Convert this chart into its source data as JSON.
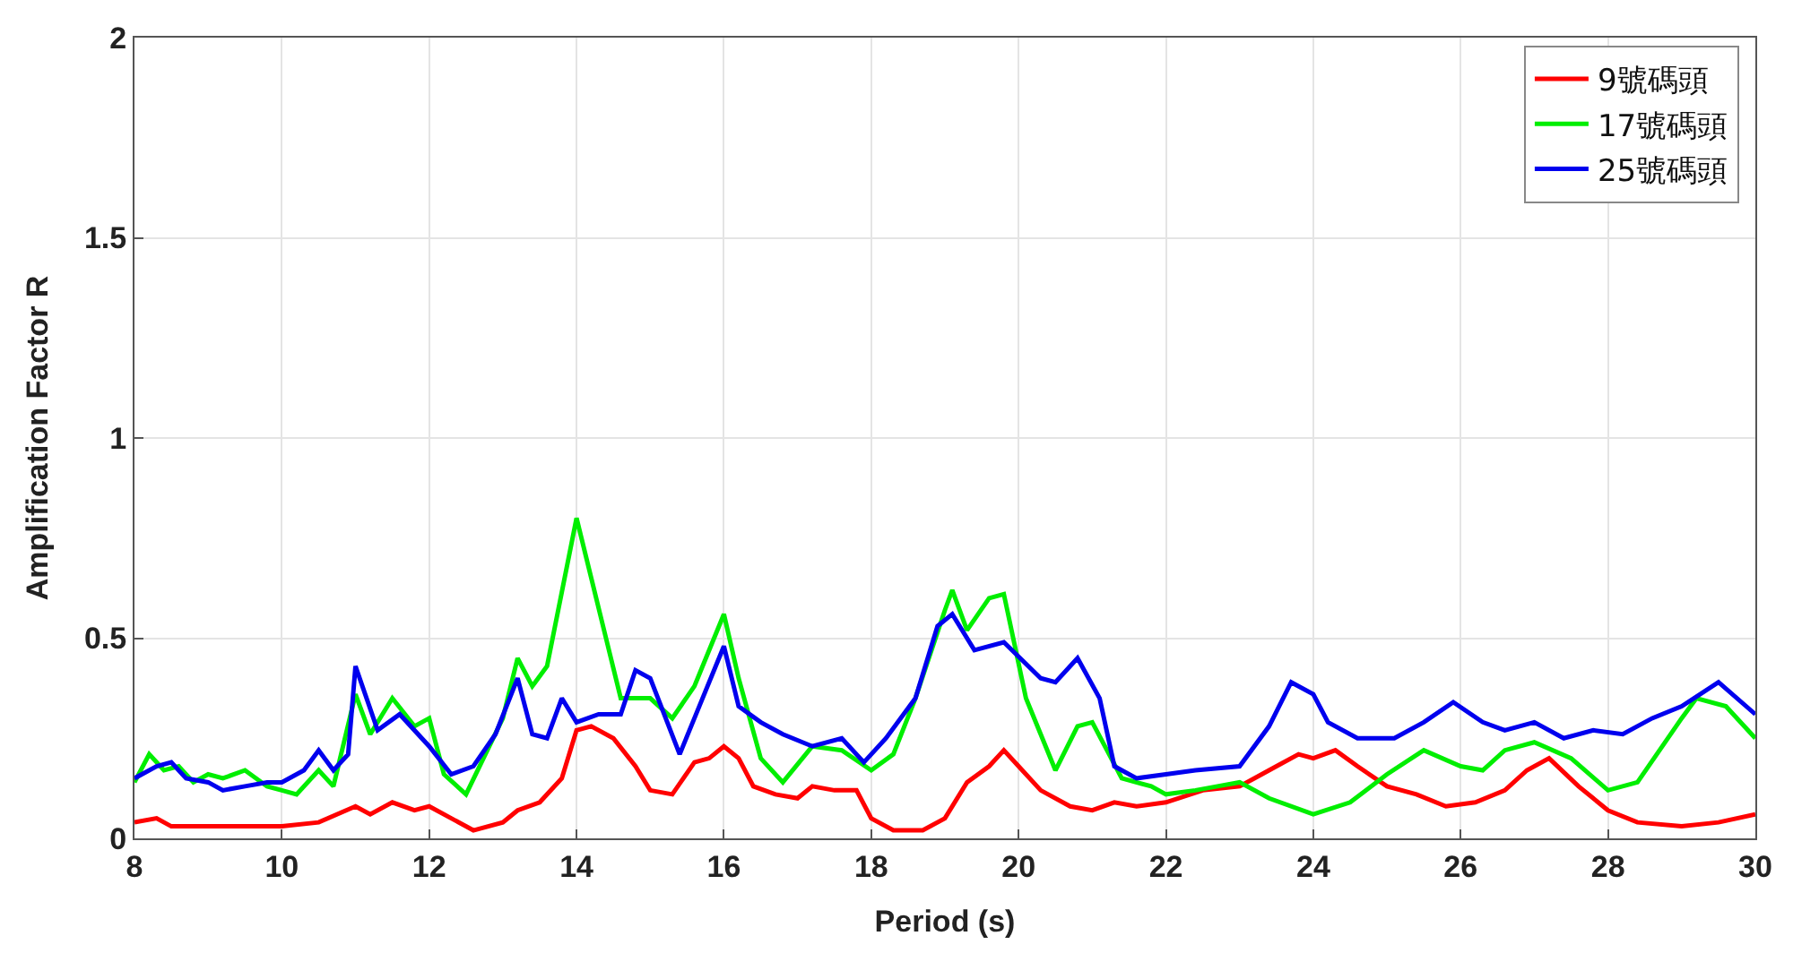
{
  "chart_data": {
    "type": "line",
    "xlabel": "Period (s)",
    "ylabel": "Amplification Factor R",
    "xlim": [
      8,
      30
    ],
    "xticks": [
      8,
      10,
      12,
      14,
      16,
      18,
      20,
      22,
      24,
      26,
      28,
      30
    ],
    "ylim": [
      0,
      2
    ],
    "yticks": [
      0,
      0.5,
      1,
      1.5,
      2
    ],
    "grid": true,
    "legend": "top right",
    "marker": "none",
    "line_style": "solid",
    "series": [
      {
        "name": "9號碼頭",
        "color": "#ff0000",
        "x": [
          8,
          8.3,
          8.5,
          9,
          9.5,
          10,
          10.5,
          11,
          11.2,
          11.5,
          11.8,
          12,
          12.3,
          12.6,
          13,
          13.2,
          13.5,
          13.8,
          14,
          14.2,
          14.5,
          14.8,
          15,
          15.3,
          15.6,
          15.8,
          16,
          16.2,
          16.4,
          16.7,
          17,
          17.2,
          17.5,
          17.8,
          18,
          18.3,
          18.7,
          19,
          19.3,
          19.6,
          19.8,
          20,
          20.3,
          20.7,
          21,
          21.3,
          21.6,
          22,
          22.5,
          23,
          23.2,
          23.5,
          23.8,
          24,
          24.3,
          24.6,
          25,
          25.4,
          25.8,
          26.2,
          26.6,
          26.9,
          27.2,
          27.6,
          28,
          28.4,
          29,
          29.5,
          30
        ],
        "values": [
          0.04,
          0.05,
          0.03,
          0.03,
          0.03,
          0.03,
          0.04,
          0.08,
          0.06,
          0.09,
          0.07,
          0.08,
          0.05,
          0.02,
          0.04,
          0.07,
          0.09,
          0.15,
          0.27,
          0.28,
          0.25,
          0.18,
          0.12,
          0.11,
          0.19,
          0.2,
          0.23,
          0.2,
          0.13,
          0.11,
          0.1,
          0.13,
          0.12,
          0.12,
          0.05,
          0.02,
          0.02,
          0.05,
          0.14,
          0.18,
          0.22,
          0.18,
          0.12,
          0.08,
          0.07,
          0.09,
          0.08,
          0.09,
          0.12,
          0.13,
          0.15,
          0.18,
          0.21,
          0.2,
          0.22,
          0.18,
          0.13,
          0.11,
          0.08,
          0.09,
          0.12,
          0.17,
          0.2,
          0.13,
          0.07,
          0.04,
          0.03,
          0.04,
          0.06
        ]
      },
      {
        "name": "17號碼頭",
        "color": "#00ee00",
        "x": [
          8,
          8.2,
          8.4,
          8.6,
          8.8,
          9,
          9.2,
          9.5,
          9.8,
          10,
          10.2,
          10.5,
          10.7,
          11,
          11.2,
          11.5,
          11.8,
          12,
          12.2,
          12.5,
          13,
          13.2,
          13.4,
          13.6,
          14,
          14.2,
          14.4,
          14.6,
          15,
          15.3,
          15.6,
          16,
          16.2,
          16.5,
          16.8,
          17.2,
          17.6,
          18,
          18.3,
          18.6,
          19,
          19.1,
          19.3,
          19.6,
          19.8,
          20.1,
          20.5,
          20.8,
          21,
          21.4,
          21.8,
          22,
          22.4,
          22.7,
          23,
          23.4,
          24,
          24.5,
          25,
          25.5,
          26,
          26.3,
          26.6,
          27,
          27.5,
          28,
          28.4,
          29,
          29.2,
          29.6,
          30
        ],
        "values": [
          0.14,
          0.21,
          0.17,
          0.18,
          0.14,
          0.16,
          0.15,
          0.17,
          0.13,
          0.12,
          0.11,
          0.17,
          0.13,
          0.36,
          0.26,
          0.35,
          0.28,
          0.3,
          0.16,
          0.11,
          0.3,
          0.45,
          0.38,
          0.43,
          0.8,
          0.65,
          0.5,
          0.35,
          0.35,
          0.3,
          0.38,
          0.56,
          0.4,
          0.2,
          0.14,
          0.23,
          0.22,
          0.17,
          0.21,
          0.35,
          0.57,
          0.62,
          0.52,
          0.6,
          0.61,
          0.35,
          0.17,
          0.28,
          0.29,
          0.15,
          0.13,
          0.11,
          0.12,
          0.13,
          0.14,
          0.1,
          0.06,
          0.09,
          0.16,
          0.22,
          0.18,
          0.17,
          0.22,
          0.24,
          0.2,
          0.12,
          0.14,
          0.3,
          0.35,
          0.33,
          0.25
        ]
      },
      {
        "name": "25號碼頭",
        "color": "#0000ee",
        "x": [
          8,
          8.3,
          8.5,
          8.7,
          9,
          9.2,
          9.5,
          9.8,
          10,
          10.3,
          10.5,
          10.7,
          10.9,
          11,
          11.3,
          11.6,
          12,
          12.3,
          12.6,
          12.9,
          13.2,
          13.4,
          13.6,
          13.8,
          14,
          14.3,
          14.6,
          14.8,
          15,
          15.4,
          15.6,
          16,
          16.2,
          16.5,
          16.8,
          17.2,
          17.6,
          17.9,
          18.2,
          18.6,
          18.9,
          19.1,
          19.4,
          19.8,
          20.3,
          20.5,
          20.8,
          21.1,
          21.3,
          21.6,
          22,
          22.4,
          23,
          23.4,
          23.7,
          24,
          24.2,
          24.6,
          25.1,
          25.5,
          25.9,
          26.3,
          26.6,
          27,
          27.4,
          27.8,
          28.2,
          28.6,
          29,
          29.5,
          30
        ],
        "values": [
          0.15,
          0.18,
          0.19,
          0.15,
          0.14,
          0.12,
          0.13,
          0.14,
          0.14,
          0.17,
          0.22,
          0.17,
          0.21,
          0.43,
          0.27,
          0.31,
          0.23,
          0.16,
          0.18,
          0.26,
          0.4,
          0.26,
          0.25,
          0.35,
          0.29,
          0.31,
          0.31,
          0.42,
          0.4,
          0.21,
          0.3,
          0.48,
          0.33,
          0.29,
          0.26,
          0.23,
          0.25,
          0.19,
          0.25,
          0.35,
          0.53,
          0.56,
          0.47,
          0.49,
          0.4,
          0.39,
          0.45,
          0.35,
          0.18,
          0.15,
          0.16,
          0.17,
          0.18,
          0.28,
          0.39,
          0.36,
          0.29,
          0.25,
          0.25,
          0.29,
          0.34,
          0.29,
          0.27,
          0.29,
          0.25,
          0.27,
          0.26,
          0.3,
          0.33,
          0.39,
          0.31
        ]
      }
    ]
  }
}
